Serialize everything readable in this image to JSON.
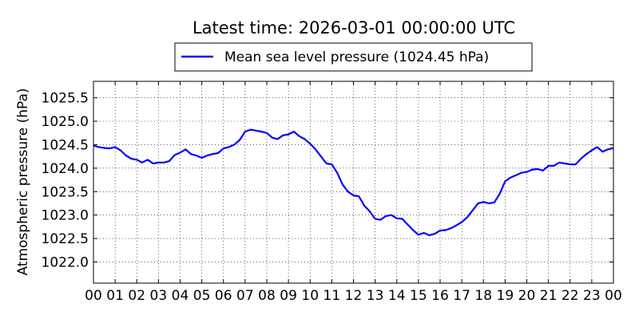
{
  "chart_data": {
    "type": "line",
    "title": "Latest time: 2026-03-01 00:00:00 UTC",
    "xlabel": "",
    "ylabel": "Atmospheric pressure (hPa)",
    "x_tick_labels": [
      "00",
      "01",
      "02",
      "03",
      "04",
      "05",
      "06",
      "07",
      "08",
      "09",
      "10",
      "11",
      "12",
      "13",
      "14",
      "15",
      "16",
      "17",
      "18",
      "19",
      "20",
      "21",
      "22",
      "23",
      "00"
    ],
    "x_ticks": [
      0,
      1,
      2,
      3,
      4,
      5,
      6,
      7,
      8,
      9,
      10,
      11,
      12,
      13,
      14,
      15,
      16,
      17,
      18,
      19,
      20,
      21,
      22,
      23,
      24
    ],
    "xlim": [
      0,
      24
    ],
    "y_ticks": [
      1022.0,
      1022.5,
      1023.0,
      1023.5,
      1024.0,
      1024.5,
      1025.0,
      1025.5
    ],
    "y_tick_labels": [
      "1022.0",
      "1022.5",
      "1023.0",
      "1023.5",
      "1024.0",
      "1024.5",
      "1025.0",
      "1025.5"
    ],
    "ylim": [
      1021.55,
      1025.85
    ],
    "grid": true,
    "legend_position": "top-center",
    "series": [
      {
        "name": "Mean sea level pressure (1024.45 hPa)",
        "color": "#0000ff",
        "x": [
          0,
          0.25,
          0.5,
          0.75,
          1,
          1.25,
          1.5,
          1.75,
          2,
          2.25,
          2.5,
          2.75,
          3,
          3.25,
          3.5,
          3.75,
          4,
          4.25,
          4.5,
          4.75,
          5,
          5.25,
          5.5,
          5.75,
          6,
          6.25,
          6.5,
          6.75,
          7,
          7.25,
          7.5,
          7.75,
          8,
          8.25,
          8.5,
          8.75,
          9,
          9.25,
          9.5,
          9.75,
          10,
          10.25,
          10.5,
          10.75,
          11,
          11.25,
          11.5,
          11.75,
          12,
          12.25,
          12.5,
          12.75,
          13,
          13.25,
          13.5,
          13.75,
          14,
          14.25,
          14.5,
          14.75,
          15,
          15.25,
          15.5,
          15.75,
          16,
          16.25,
          16.5,
          16.75,
          17,
          17.25,
          17.5,
          17.75,
          18,
          18.25,
          18.5,
          18.75,
          19,
          19.25,
          19.5,
          19.75,
          20,
          20.25,
          20.5,
          20.75,
          21,
          21.25,
          21.5,
          21.75,
          22,
          22.25,
          22.5,
          22.75,
          23,
          23.25,
          23.5,
          23.75,
          24
        ],
        "y": [
          1024.48,
          1024.45,
          1024.43,
          1024.42,
          1024.45,
          1024.38,
          1024.27,
          1024.2,
          1024.18,
          1024.12,
          1024.18,
          1024.1,
          1024.12,
          1024.12,
          1024.15,
          1024.28,
          1024.33,
          1024.4,
          1024.3,
          1024.27,
          1024.22,
          1024.27,
          1024.3,
          1024.32,
          1024.42,
          1024.45,
          1024.5,
          1024.6,
          1024.78,
          1024.82,
          1024.8,
          1024.78,
          1024.75,
          1024.65,
          1024.62,
          1024.7,
          1024.72,
          1024.78,
          1024.68,
          1024.62,
          1024.52,
          1024.4,
          1024.25,
          1024.1,
          1024.08,
          1023.9,
          1023.65,
          1023.5,
          1023.42,
          1023.4,
          1023.2,
          1023.08,
          1022.92,
          1022.9,
          1022.98,
          1023.0,
          1022.93,
          1022.92,
          1022.8,
          1022.68,
          1022.58,
          1022.62,
          1022.57,
          1022.6,
          1022.67,
          1022.68,
          1022.72,
          1022.78,
          1022.85,
          1022.95,
          1023.1,
          1023.25,
          1023.28,
          1023.25,
          1023.27,
          1023.45,
          1023.72,
          1023.8,
          1023.85,
          1023.9,
          1023.92,
          1023.97,
          1023.98,
          1023.95,
          1024.05,
          1024.05,
          1024.12,
          1024.1,
          1024.08,
          1024.08,
          1024.2,
          1024.3,
          1024.38,
          1024.45,
          1024.35,
          1024.4,
          1024.43
        ]
      }
    ]
  }
}
